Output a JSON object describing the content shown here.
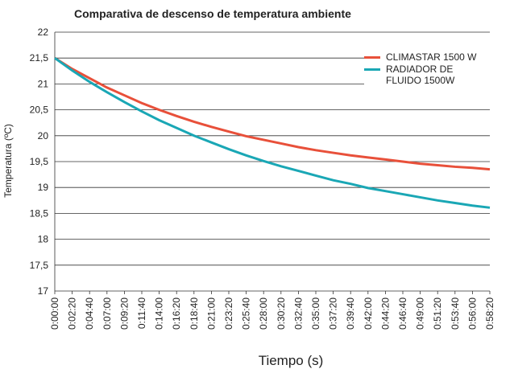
{
  "chart_data": {
    "type": "line",
    "title": "Comparativa de descenso de temperatura ambiente",
    "x_label": "Tiempo (s)",
    "y_label": "Temperatura (ºC)",
    "categories": [
      "0:00:00",
      "0:02:20",
      "0:04:40",
      "0:07:00",
      "0:09:20",
      "0:11:40",
      "0:14:00",
      "0:16:20",
      "0:18:40",
      "0:21:00",
      "0:23:20",
      "0:25:40",
      "0:28:00",
      "0:30:20",
      "0:32:40",
      "0:35:00",
      "0:37:20",
      "0:39:40",
      "0:42:00",
      "0:44:20",
      "0:46:40",
      "0:49:00",
      "0:51:20",
      "0:53:40",
      "0:56:00",
      "0:58:20"
    ],
    "series": [
      {
        "name": "CLIMASTAR 1500 W",
        "color": "#e8503a",
        "values": [
          21.5,
          21.29,
          21.11,
          20.93,
          20.78,
          20.63,
          20.5,
          20.38,
          20.27,
          20.17,
          20.08,
          19.99,
          19.92,
          19.85,
          19.78,
          19.72,
          19.67,
          19.62,
          19.58,
          19.54,
          19.5,
          19.46,
          19.43,
          19.4,
          19.38,
          19.35
        ]
      },
      {
        "name": "RADIADOR DE FLUIDO 1500W",
        "color": "#1aa7b5",
        "values": [
          21.5,
          21.26,
          21.04,
          20.84,
          20.65,
          20.47,
          20.3,
          20.15,
          20.0,
          19.87,
          19.74,
          19.62,
          19.51,
          19.41,
          19.32,
          19.23,
          19.14,
          19.07,
          18.99,
          18.93,
          18.87,
          18.81,
          18.75,
          18.7,
          18.65,
          18.61
        ]
      }
    ],
    "ylim": [
      17,
      22
    ],
    "yticks": [
      17,
      {
        "value": 17.5,
        "label": "17,5"
      },
      18,
      {
        "value": 18.5,
        "label": "18,5"
      },
      19,
      {
        "value": 19.5,
        "label": "19,5"
      },
      20,
      {
        "value": 20.5,
        "label": "20,5"
      },
      21,
      {
        "value": 21.5,
        "label": "21,5"
      },
      22
    ],
    "grid": true,
    "legend": "top-right"
  }
}
